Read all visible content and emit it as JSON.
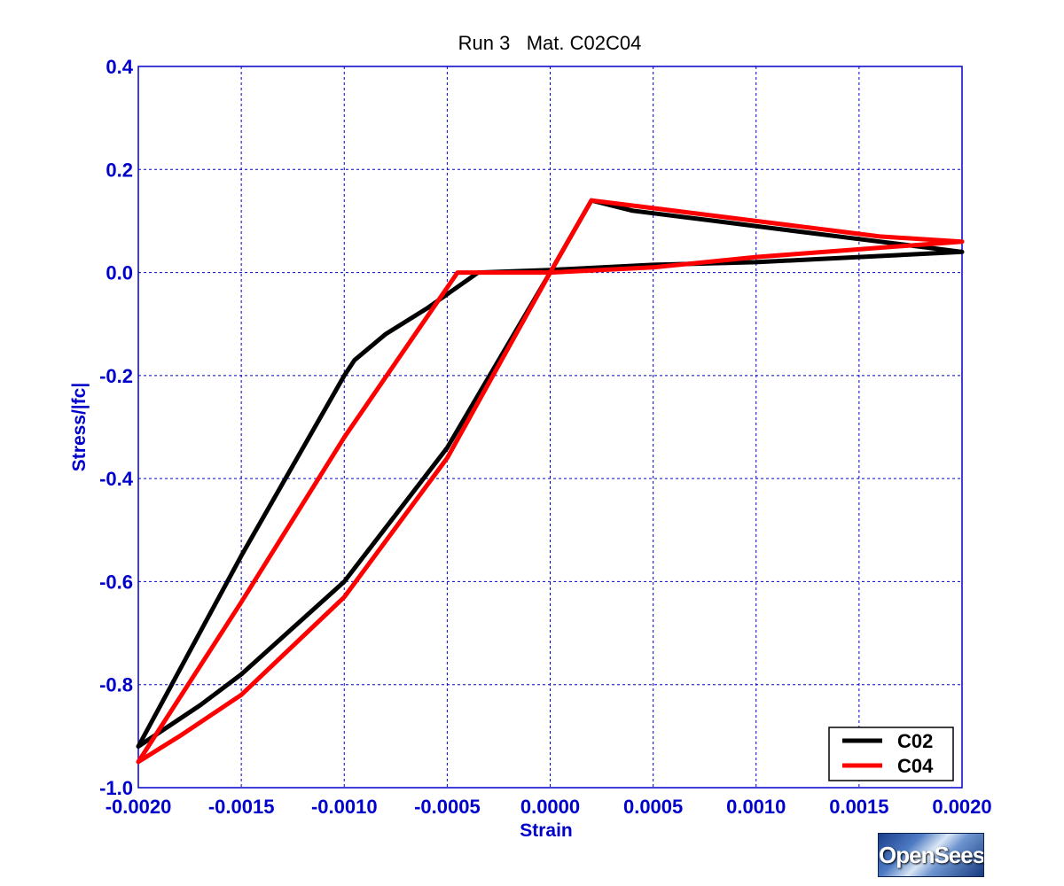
{
  "colors": {
    "axis": "#0000cc",
    "grid": "#0000cc",
    "c02": "#000000",
    "c04": "#ff0000"
  },
  "logo": {
    "text": "OpenSees"
  },
  "chart_data": {
    "type": "line",
    "title": "Run 3   Mat. C02C04",
    "xlabel": "Strain",
    "ylabel": "Stress/|fc|",
    "xlim": [
      -0.002,
      0.002
    ],
    "ylim": [
      -1.0,
      0.4
    ],
    "xticks": [
      -0.002,
      -0.0015,
      -0.001,
      -0.0005,
      0.0,
      0.0005,
      0.001,
      0.0015,
      0.002
    ],
    "xtick_labels": [
      "-0.0020",
      "-0.0015",
      "-0.0010",
      "-0.0005",
      "0.0000",
      "0.0005",
      "0.0010",
      "0.0015",
      "0.0020"
    ],
    "yticks": [
      -1.0,
      -0.8,
      -0.6,
      -0.4,
      -0.2,
      0.0,
      0.2,
      0.4
    ],
    "ytick_labels": [
      "-1.0",
      "-0.8",
      "-0.6",
      "-0.4",
      "-0.2",
      "0.0",
      "0.2",
      "0.4"
    ],
    "grid": true,
    "legend_position": "bottom-right",
    "series": [
      {
        "name": "C02",
        "color": "#000000",
        "x": [
          0.002,
          0.0016,
          0.0012,
          0.0008,
          0.0004,
          0.0002,
          0.0,
          -0.0005,
          -0.001,
          -0.0015,
          -0.0017,
          -0.002,
          -0.0015,
          -0.001,
          -0.00095,
          -0.0008,
          -0.0006,
          -0.00035,
          0.0,
          0.0005,
          0.001,
          0.0015,
          0.002
        ],
        "y": [
          0.04,
          0.06,
          0.08,
          0.1,
          0.12,
          0.14,
          0.0,
          -0.34,
          -0.6,
          -0.78,
          -0.84,
          -0.92,
          -0.55,
          -0.2,
          -0.17,
          -0.12,
          -0.07,
          0.0,
          0.005,
          0.015,
          0.02,
          0.03,
          0.04
        ]
      },
      {
        "name": "C04",
        "color": "#ff0000",
        "x": [
          0.002,
          0.0016,
          0.0012,
          0.0008,
          0.0004,
          0.0002,
          0.0,
          -0.0005,
          -0.001,
          -0.0015,
          -0.0018,
          -0.002,
          -0.0015,
          -0.001,
          -0.00045,
          0.0,
          0.0005,
          0.001,
          0.0015,
          0.002
        ],
        "y": [
          0.06,
          0.07,
          0.09,
          0.11,
          0.13,
          0.14,
          0.0,
          -0.36,
          -0.63,
          -0.82,
          -0.9,
          -0.95,
          -0.64,
          -0.32,
          0.0,
          0.0,
          0.01,
          0.03,
          0.045,
          0.06
        ]
      }
    ]
  }
}
